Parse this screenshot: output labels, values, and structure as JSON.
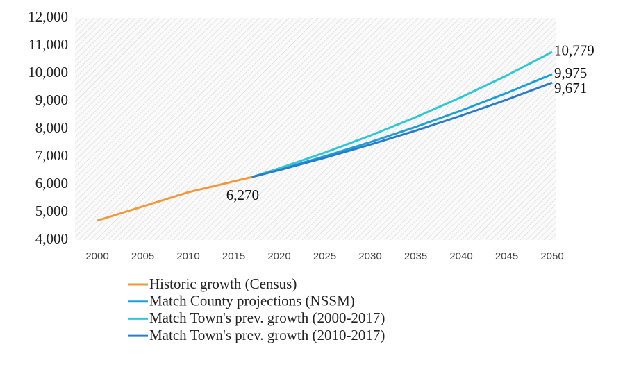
{
  "chart_data": {
    "type": "line",
    "xlim": [
      2000,
      2050
    ],
    "xticks": [
      2000,
      2005,
      2010,
      2015,
      2020,
      2025,
      2030,
      2035,
      2040,
      2045,
      2050
    ],
    "ylim": [
      4000,
      12000
    ],
    "yticks": [
      {
        "value": 4000,
        "label": "4,000"
      },
      {
        "value": 5000,
        "label": "5,000"
      },
      {
        "value": 6000,
        "label": "6,000"
      },
      {
        "value": 7000,
        "label": "7,000"
      },
      {
        "value": 8000,
        "label": "8,000"
      },
      {
        "value": 9000,
        "label": "9,000"
      },
      {
        "value": 10000,
        "label": "10,000"
      },
      {
        "value": 11000,
        "label": "11,000"
      },
      {
        "value": 12000,
        "label": "12,000"
      }
    ],
    "series": [
      {
        "name": "Historic growth (Census)",
        "color": "#ee9a3a",
        "x": [
          2000,
          2010,
          2017
        ],
        "values": [
          4700,
          5720,
          6270
        ]
      },
      {
        "name": "Match County projections (NSSM)",
        "color": "#1aa0d8",
        "x": [
          2017,
          2020,
          2025,
          2030,
          2035,
          2040,
          2045,
          2050
        ],
        "values": [
          6270,
          6540,
          7017,
          7528,
          8077,
          8666,
          9298,
          9975
        ]
      },
      {
        "name": "Match Town's prev. growth (2000-2017)",
        "color": "#2ec8d4",
        "x": [
          2017,
          2020,
          2025,
          2030,
          2035,
          2040,
          2045,
          2050
        ],
        "values": [
          6270,
          6587,
          7150,
          7762,
          8426,
          9147,
          9929,
          10779
        ]
      },
      {
        "name": "Match Town's prev. growth (2010-2017)",
        "color": "#2b7bc8",
        "x": [
          2017,
          2020,
          2025,
          2030,
          2035,
          2040,
          2045,
          2050
        ],
        "values": [
          6270,
          6522,
          6965,
          7438,
          7942,
          8481,
          9057,
          9671
        ]
      }
    ],
    "annotations": [
      {
        "text": "6,270",
        "x": 2017,
        "y": 6270
      },
      {
        "text": "10,779",
        "x": 2050,
        "y": 10779
      },
      {
        "text": "9,975",
        "x": 2050,
        "y": 9975
      },
      {
        "text": "9,671",
        "x": 2050,
        "y": 9671
      }
    ]
  }
}
